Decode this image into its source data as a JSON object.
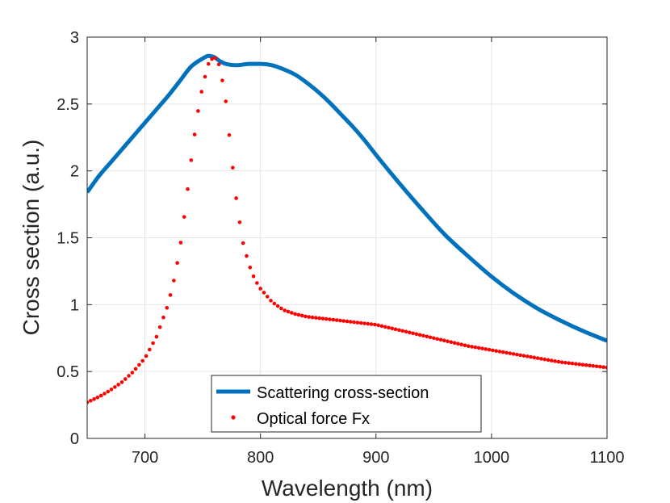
{
  "chart_data": {
    "type": "line",
    "title": "",
    "xlabel": "Wavelength (nm)",
    "ylabel": "Cross section (a.u.)",
    "xlim": [
      650,
      1100
    ],
    "ylim": [
      0,
      3
    ],
    "xticks": [
      700,
      800,
      900,
      1000,
      1100
    ],
    "yticks": [
      0,
      0.5,
      1,
      1.5,
      2,
      2.5,
      3
    ],
    "xtick_labels": [
      "700",
      "800",
      "900",
      "1000",
      "1100"
    ],
    "ytick_labels": [
      "0",
      "0.5",
      "1",
      "1.5",
      "2",
      "2.5",
      "3"
    ],
    "grid": true,
    "legend_position": "bottom-center",
    "series": [
      {
        "name": "Scattering cross-section",
        "style": "line",
        "color": "#0072BD",
        "x": [
          650,
          660,
          670,
          680,
          690,
          700,
          710,
          720,
          730,
          740,
          750,
          755,
          760,
          765,
          770,
          780,
          790,
          800,
          810,
          820,
          830,
          840,
          850,
          860,
          870,
          880,
          890,
          900,
          920,
          940,
          960,
          980,
          1000,
          1020,
          1040,
          1060,
          1080,
          1100
        ],
        "y": [
          1.84,
          1.96,
          2.06,
          2.16,
          2.26,
          2.36,
          2.46,
          2.56,
          2.67,
          2.78,
          2.84,
          2.86,
          2.85,
          2.82,
          2.8,
          2.79,
          2.8,
          2.8,
          2.79,
          2.76,
          2.72,
          2.66,
          2.59,
          2.51,
          2.42,
          2.33,
          2.23,
          2.12,
          1.91,
          1.71,
          1.52,
          1.36,
          1.21,
          1.08,
          0.97,
          0.88,
          0.8,
          0.73
        ]
      },
      {
        "name": "Optical force Fx",
        "style": "dots",
        "color": "#FF0000",
        "x": [
          650,
          660,
          670,
          680,
          690,
          700,
          710,
          720,
          725,
          730,
          735,
          740,
          745,
          750,
          755,
          760,
          765,
          770,
          775,
          780,
          785,
          790,
          795,
          800,
          810,
          820,
          830,
          840,
          850,
          860,
          870,
          880,
          890,
          900,
          920,
          940,
          960,
          980,
          1000,
          1020,
          1040,
          1060,
          1080,
          1100
        ],
        "y": [
          0.27,
          0.31,
          0.36,
          0.42,
          0.5,
          0.6,
          0.76,
          1.0,
          1.18,
          1.4,
          1.72,
          2.08,
          2.4,
          2.64,
          2.8,
          2.86,
          2.78,
          2.52,
          2.1,
          1.72,
          1.46,
          1.3,
          1.19,
          1.12,
          1.02,
          0.96,
          0.93,
          0.91,
          0.9,
          0.89,
          0.88,
          0.87,
          0.86,
          0.85,
          0.81,
          0.77,
          0.73,
          0.69,
          0.66,
          0.63,
          0.6,
          0.57,
          0.55,
          0.53
        ]
      }
    ]
  }
}
